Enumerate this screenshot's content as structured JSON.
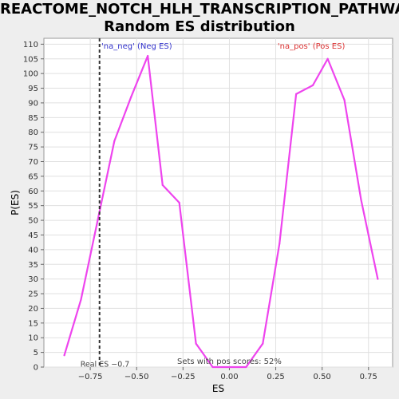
{
  "chart_data": {
    "type": "line",
    "title_line1": "REACTOME_NOTCH_HLH_TRANSCRIPTION_PATHWAY:",
    "title_line2": "Random ES distribution",
    "xlabel": "ES",
    "ylabel": "P(ES)",
    "xlim": [
      -1.0,
      0.88
    ],
    "ylim": [
      0,
      112
    ],
    "x_ticks": [
      -0.75,
      -0.5,
      -0.25,
      0.0,
      0.25,
      0.5,
      0.75
    ],
    "x_tick_labels": [
      "−0.75",
      "−0.50",
      "−0.25",
      "0.00",
      "0.25",
      "0.50",
      "0.75"
    ],
    "y_ticks": [
      0,
      5,
      10,
      15,
      20,
      25,
      30,
      35,
      40,
      45,
      50,
      55,
      60,
      65,
      70,
      75,
      80,
      85,
      90,
      95,
      100,
      105,
      110
    ],
    "grid": true,
    "series": [
      {
        "color": "#ee44ee",
        "x": [
          -0.89,
          -0.8,
          -0.71,
          -0.62,
          -0.53,
          -0.44,
          -0.36,
          -0.27,
          -0.18,
          -0.09,
          0.0,
          0.09,
          0.18,
          0.27,
          0.36,
          0.45,
          0.53,
          0.62,
          0.71,
          0.8
        ],
        "y": [
          4,
          23,
          50,
          77,
          92,
          106,
          62,
          56,
          8,
          0,
          0,
          0,
          8,
          42,
          93,
          96,
          105,
          91,
          57,
          30
        ]
      }
    ],
    "real_es": {
      "value": -0.7,
      "label": "Real ES −0.7"
    },
    "annotations": {
      "neg_label": "'na_neg' (Neg ES)",
      "neg_color": "#3333cc",
      "pos_label": "'na_pos' (Pos ES)",
      "pos_color": "#dd3333",
      "sets_label": "Sets with pos scores: 52%"
    }
  }
}
